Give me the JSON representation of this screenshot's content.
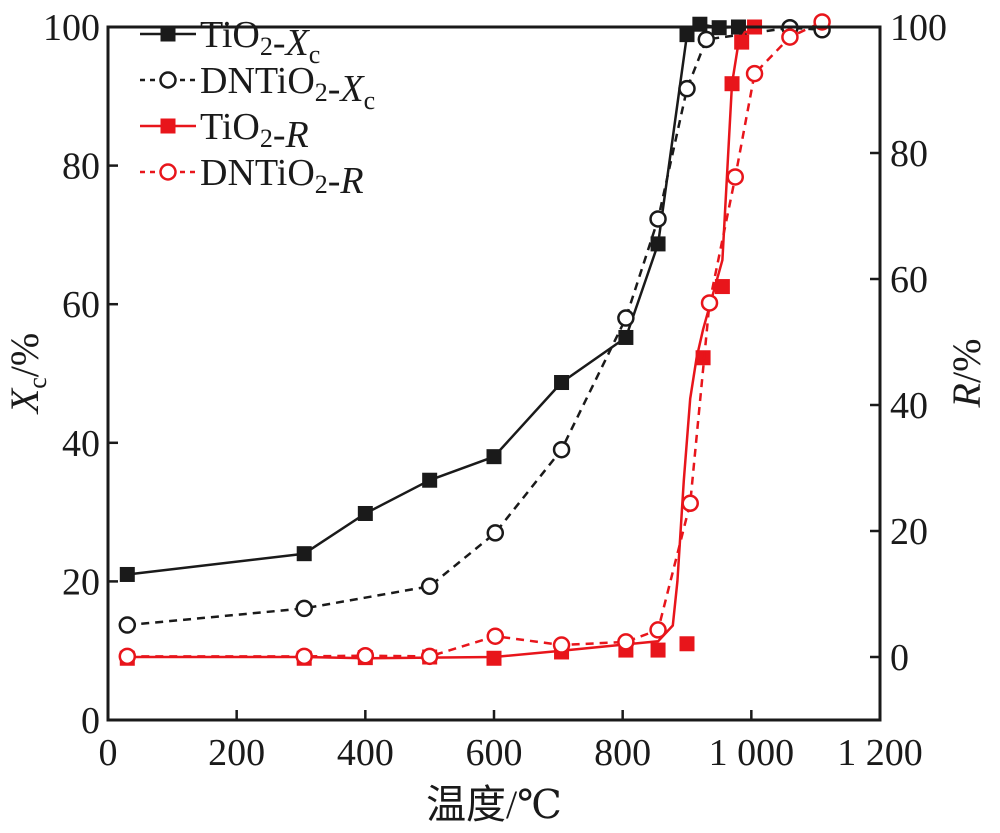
{
  "chart_data": {
    "type": "line",
    "xlabel": "温度/℃",
    "ylabel_left": {
      "main": "X",
      "sub": "c",
      "unit": "/%"
    },
    "ylabel_right": {
      "main": "R",
      "unit": "/%"
    },
    "xlim": [
      0,
      1200
    ],
    "ylim_left": [
      0,
      100
    ],
    "ylim_right": [
      -10,
      100
    ],
    "x_ticks": [
      {
        "value": 0,
        "label": "0"
      },
      {
        "value": 200,
        "label": "200"
      },
      {
        "value": 400,
        "label": "400"
      },
      {
        "value": 600,
        "label": "600"
      },
      {
        "value": 800,
        "label": "800"
      },
      {
        "value": 1000,
        "label": "1 000"
      },
      {
        "value": 1200,
        "label": "1 200"
      }
    ],
    "y_left_ticks": [
      0,
      20,
      40,
      60,
      80,
      100
    ],
    "y_right_ticks": [
      0,
      20,
      40,
      60,
      80,
      100
    ],
    "legend_position": "top-left",
    "series": [
      {
        "name": "TiO2-Xc",
        "label_parts": [
          {
            "t": "TiO"
          },
          {
            "t": "2",
            "sub": true
          },
          {
            "t": "-"
          },
          {
            "t": "X",
            "italic": true
          },
          {
            "t": "c",
            "sub": true
          }
        ],
        "axis": "left",
        "color": "#1a1a1a",
        "marker": "square-filled",
        "dashed": false,
        "x": [
          30,
          305,
          400,
          500,
          600,
          705,
          805,
          855,
          900,
          920,
          950,
          980
        ],
        "y": [
          21,
          24,
          29.8,
          34.6,
          38,
          48.7,
          55.2,
          68.7,
          98.9,
          100.4,
          99.9,
          100
        ]
      },
      {
        "name": "DNTiO2-Xc",
        "label_parts": [
          {
            "t": "DNTiO"
          },
          {
            "t": "2",
            "sub": true
          },
          {
            "t": "-"
          },
          {
            "t": "X",
            "italic": true
          },
          {
            "t": "c",
            "sub": true
          }
        ],
        "axis": "left",
        "color": "#1a1a1a",
        "marker": "circle-open",
        "dashed": true,
        "x": [
          30,
          305,
          500,
          602,
          705,
          805,
          855,
          900,
          930,
          1060,
          1110
        ],
        "y": [
          13.7,
          16.1,
          19.3,
          27,
          39,
          58,
          72.3,
          91.1,
          98.2,
          99.9,
          99.6
        ]
      },
      {
        "name": "TiO2-R",
        "label_parts": [
          {
            "t": "TiO"
          },
          {
            "t": "2",
            "sub": true
          },
          {
            "t": "-"
          },
          {
            "t": "R",
            "italic": true
          }
        ],
        "axis": "right",
        "color": "#e8151b",
        "marker": "square-filled",
        "dashed": false,
        "x": [
          30,
          305,
          400,
          500,
          600,
          705,
          805,
          855,
          900,
          925,
          955,
          970,
          985,
          1005
        ],
        "y": [
          -0.2,
          -0.2,
          -0.1,
          0,
          -0.2,
          0.8,
          1.1,
          1.1,
          2.1,
          47.5,
          58.8,
          91,
          97.6,
          100
        ],
        "curve": {
          "x": [
            30,
            305,
            400,
            500,
            600,
            705,
            805,
            855,
            878,
            885,
            895,
            905,
            915,
            925,
            955,
            970,
            980,
            990,
            1005
          ],
          "y": [
            0,
            0,
            -0.2,
            -0.1,
            0,
            1,
            2,
            2.5,
            5,
            12,
            28,
            41,
            47.5,
            52,
            63,
            91,
            97.5,
            99.2,
            99.4
          ]
        }
      },
      {
        "name": "DNTiO2-R",
        "label_parts": [
          {
            "t": "DNTiO"
          },
          {
            "t": "2",
            "sub": true
          },
          {
            "t": "-"
          },
          {
            "t": "R",
            "italic": true
          }
        ],
        "axis": "right",
        "color": "#e8151b",
        "marker": "circle-open",
        "dashed": true,
        "x": [
          30,
          305,
          400,
          500,
          602,
          705,
          805,
          855,
          905,
          935,
          975,
          1005,
          1060,
          1110
        ],
        "y": [
          0.1,
          0.1,
          0.2,
          0.1,
          3.3,
          1.9,
          2.4,
          4.3,
          24.4,
          56.2,
          76.2,
          92.6,
          98.4,
          100.8
        ]
      }
    ]
  }
}
